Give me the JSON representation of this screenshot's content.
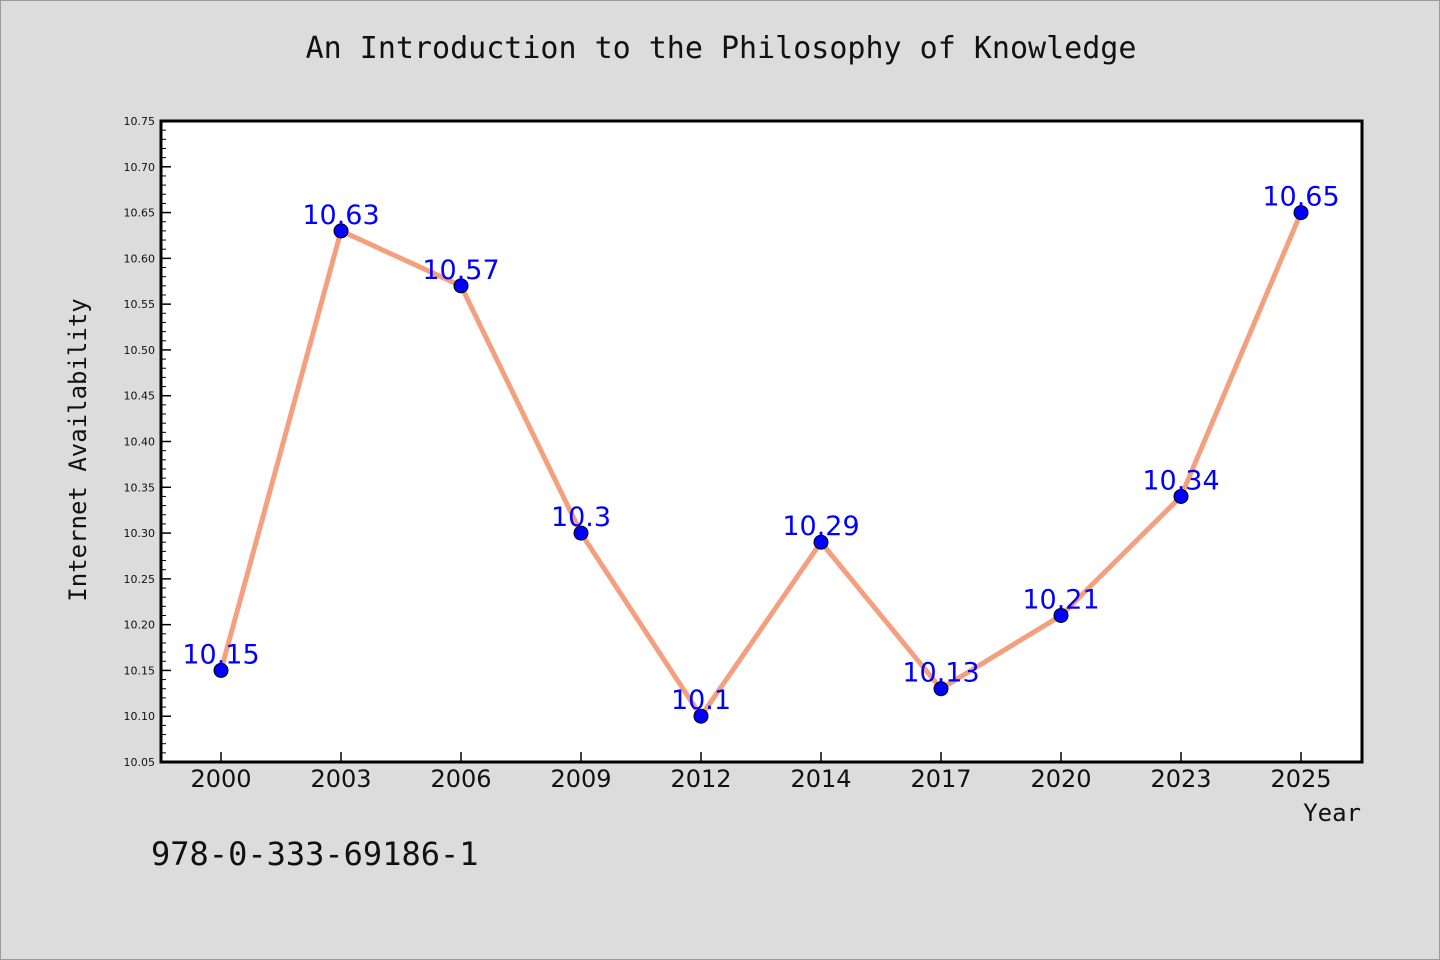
{
  "title": "An Introduction to the Philosophy of Knowledge",
  "footer_text": "978-0-333-69186-1",
  "chart_data": {
    "type": "line",
    "categories": [
      "2000",
      "2003",
      "2006",
      "2009",
      "2012",
      "2014",
      "2017",
      "2020",
      "2023",
      "2025"
    ],
    "values": [
      10.15,
      10.63,
      10.57,
      10.3,
      10.1,
      10.29,
      10.13,
      10.21,
      10.34,
      10.65
    ],
    "data_labels": [
      "10.15",
      "10.63",
      "10.57",
      "10.3",
      "10.1",
      "10.29",
      "10.13",
      "10.21",
      "10.34",
      "10.65"
    ],
    "title": "An Introduction to the Philosophy of Knowledge",
    "xlabel": "Year",
    "ylabel": "Internet Availability",
    "ylim": [
      10.05,
      10.75
    ],
    "yticks": [
      "10.05",
      "10.10",
      "10.15",
      "10.20",
      "10.25",
      "10.30",
      "10.35",
      "10.40",
      "10.45",
      "10.50",
      "10.55",
      "10.60",
      "10.65",
      "10.70",
      "10.75"
    ],
    "grid": false,
    "legend": "none",
    "line_color": "#f4a07f",
    "marker_color": "#0000ff",
    "label_color": "#0000ff"
  }
}
